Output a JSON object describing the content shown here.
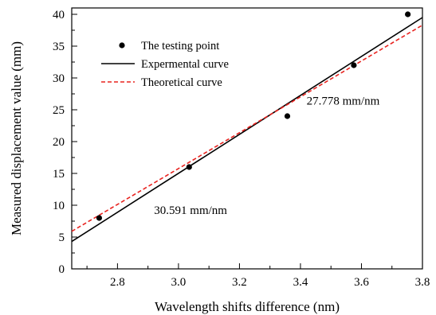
{
  "chart_data": {
    "type": "scatter",
    "xlabel": "Wavelength shifts difference (nm)",
    "ylabel": "Measured displacement value (mm)",
    "xlim": [
      2.65,
      3.8
    ],
    "ylim": [
      0,
      41
    ],
    "x_ticks": [
      2.8,
      3.0,
      3.2,
      3.4,
      3.6,
      3.8
    ],
    "y_ticks": [
      0,
      5,
      10,
      15,
      20,
      25,
      30,
      35,
      40
    ],
    "grid": false,
    "legend_position": "top-left",
    "series": [
      {
        "name": "The testing point",
        "kind": "scatter",
        "color": "#000000",
        "points": [
          {
            "x": 2.74,
            "y": 8
          },
          {
            "x": 3.035,
            "y": 16
          },
          {
            "x": 3.357,
            "y": 24
          },
          {
            "x": 3.575,
            "y": 32
          },
          {
            "x": 3.752,
            "y": 40
          }
        ]
      },
      {
        "name": "Expermental curve",
        "kind": "line",
        "style": "solid",
        "color": "#000000",
        "points": [
          {
            "x": 2.65,
            "y": 4.3
          },
          {
            "x": 3.8,
            "y": 39.5
          }
        ]
      },
      {
        "name": "Theoretical curve",
        "kind": "line",
        "style": "dashed",
        "color": "#e8231f",
        "points": [
          {
            "x": 2.65,
            "y": 5.9
          },
          {
            "x": 3.8,
            "y": 38.3
          }
        ]
      }
    ],
    "annotations": [
      {
        "text": "27.778 mm/nm",
        "x": 3.42,
        "y": 25.8
      },
      {
        "text": "30.591 mm/nm",
        "x": 2.92,
        "y": 8.6
      }
    ]
  }
}
